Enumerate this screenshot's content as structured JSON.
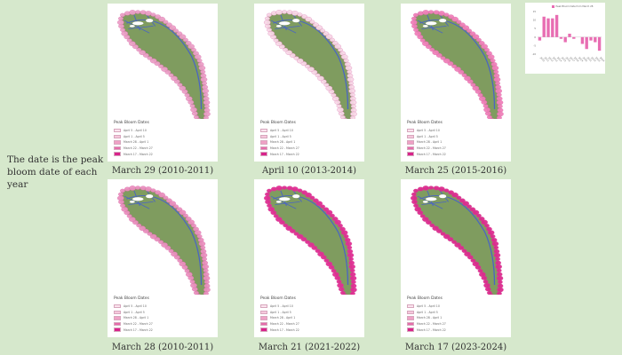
{
  "side_note": "The date is the peak bloom date of each year",
  "legend": {
    "title": "Peak Bloom Dates",
    "entries": [
      {
        "label": "April 5 - April 10",
        "color": "#fbe3ee"
      },
      {
        "label": "April 1 - April 5",
        "color": "#f6c7dc"
      },
      {
        "label": "March 28 - April 1",
        "color": "#efa1c6"
      },
      {
        "label": "March 22 - March 27",
        "color": "#e56cab"
      },
      {
        "label": "March 17 - March 22",
        "color": "#d8238b"
      }
    ]
  },
  "maps": [
    {
      "caption": "March 29 (2010-2011)",
      "dot_color": "#ec9fc7",
      "path_color": "#4a64c4"
    },
    {
      "caption": "April 10 (2013-2014)",
      "dot_color": "#f9d7e7",
      "path_color": "#4a64c4"
    },
    {
      "caption": "March 25 (2015-2016)",
      "dot_color": "#f07fb9",
      "path_color": "#4a64c4"
    },
    {
      "caption": "March 28 (2010-2011)",
      "dot_color": "#eb8fbf",
      "path_color": "#4a64c4"
    },
    {
      "caption": "March 21 (2021-2022)",
      "dot_color": "#e22d94",
      "path_color": "#4a64c4"
    },
    {
      "caption": "March 17 (2023-2024)",
      "dot_color": "#dd2a8e",
      "path_color": "#4a64c4"
    }
  ],
  "colors": {
    "background": "#d6e8cc",
    "land": "#7f9c5f",
    "water": "#ffffff"
  },
  "chart_data": {
    "type": "bar",
    "title": "",
    "legend": "Peak Bloom Date from March 28",
    "categories": [
      "2010",
      "2011",
      "2012",
      "2013",
      "2014",
      "2015",
      "2016",
      "2017",
      "2018",
      "2019",
      "2020",
      "2021",
      "2022",
      "2023",
      "2024"
    ],
    "values": [
      -2,
      12,
      11,
      11,
      13,
      -1,
      -3,
      2,
      -1,
      0,
      -4,
      -7,
      -2,
      -3,
      -8
    ],
    "ylim": [
      -10,
      15
    ],
    "bar_color": "#e86db2"
  }
}
